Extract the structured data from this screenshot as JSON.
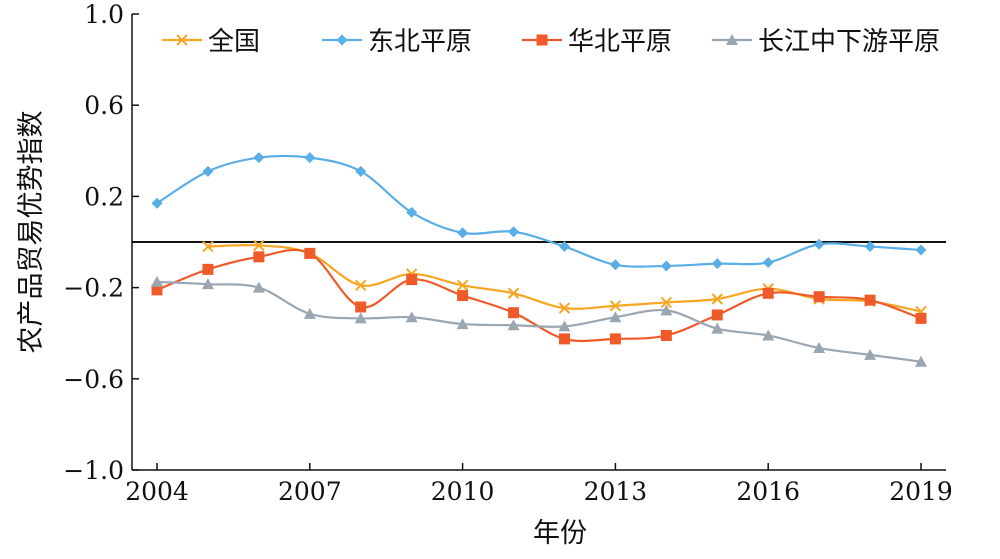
{
  "chart_data": {
    "type": "line",
    "title": "",
    "xlabel": "年份",
    "ylabel": "农产品贸易优势指数",
    "x": [
      2004,
      2005,
      2006,
      2007,
      2008,
      2009,
      2010,
      2011,
      2012,
      2013,
      2014,
      2015,
      2016,
      2017,
      2018,
      2019
    ],
    "x_ticks": [
      "2004",
      "2007",
      "2010",
      "2013",
      "2016",
      "2019"
    ],
    "y_ticks": [
      "1.0",
      "0.6",
      "0.2",
      "-0.2",
      "-0.6",
      "-1.0"
    ],
    "xlim": [
      2004,
      2019
    ],
    "ylim": [
      -1.0,
      1.0
    ],
    "reference_line": 0,
    "grid": false,
    "legend_position": "top",
    "series": [
      {
        "name": "全国",
        "color": "#f5a623",
        "marker": "x",
        "values": [
          null,
          -0.02,
          -0.015,
          -0.05,
          -0.19,
          -0.14,
          -0.19,
          -0.225,
          -0.29,
          -0.28,
          -0.265,
          -0.25,
          -0.205,
          -0.25,
          -0.26,
          -0.305
        ]
      },
      {
        "name": "东北平原",
        "color": "#5aaee6",
        "marker": "diamond",
        "values": [
          0.17,
          0.31,
          0.37,
          0.37,
          0.31,
          0.13,
          0.04,
          0.045,
          -0.02,
          -0.1,
          -0.105,
          -0.095,
          -0.09,
          -0.01,
          -0.02,
          -0.035
        ]
      },
      {
        "name": "华北平原",
        "color": "#ef5a2a",
        "marker": "square",
        "values": [
          -0.21,
          -0.12,
          -0.065,
          -0.05,
          -0.285,
          -0.165,
          -0.235,
          -0.31,
          -0.425,
          -0.425,
          -0.41,
          -0.32,
          -0.225,
          -0.24,
          -0.255,
          -0.335
        ]
      },
      {
        "name": "长江中下游平原",
        "color": "#9aa6b2",
        "marker": "triangle",
        "values": [
          -0.175,
          -0.185,
          -0.2,
          -0.315,
          -0.335,
          -0.33,
          -0.36,
          -0.365,
          -0.37,
          -0.33,
          -0.3,
          -0.38,
          -0.41,
          -0.465,
          -0.495,
          -0.525
        ]
      }
    ]
  }
}
